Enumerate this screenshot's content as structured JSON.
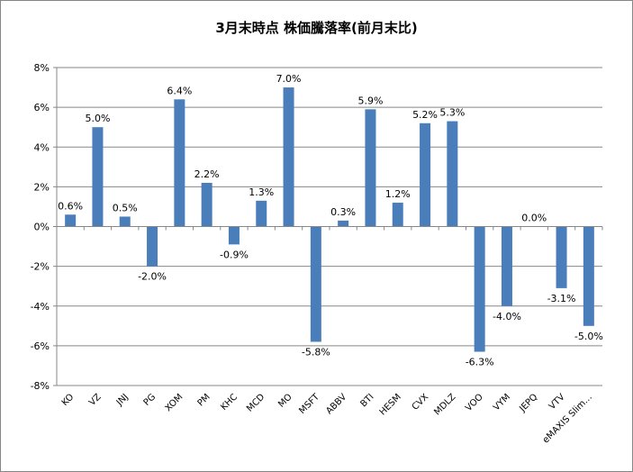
{
  "chart_data": {
    "type": "bar",
    "title": "3月末時点 株価騰落率(前月末比)",
    "xlabel": "",
    "ylabel": "",
    "ylim": [
      -8,
      8
    ],
    "ytick_step": 2,
    "yticks": [
      "-8%",
      "-6%",
      "-4%",
      "-2%",
      "0%",
      "2%",
      "4%",
      "6%",
      "8%"
    ],
    "grid": true,
    "legend": "none",
    "bar_color": "#4a7ebb",
    "categories": [
      "KO",
      "VZ",
      "JNJ",
      "PG",
      "XOM",
      "PM",
      "KHC",
      "MCD",
      "MO",
      "MSFT",
      "ABBV",
      "BTI",
      "HESM",
      "CVX",
      "MDLZ",
      "VOO",
      "VYM",
      "JEPQ",
      "VTV",
      "eMAXIS Slim…"
    ],
    "values": [
      0.6,
      5.0,
      0.5,
      -2.0,
      6.4,
      2.2,
      -0.9,
      1.3,
      7.0,
      -5.8,
      0.3,
      5.9,
      1.2,
      5.2,
      5.3,
      -6.3,
      -4.0,
      0.0,
      -3.1,
      -5.0
    ],
    "data_labels": [
      "0.6%",
      "5.0%",
      "0.5%",
      "-2.0%",
      "6.4%",
      "2.2%",
      "-0.9%",
      "1.3%",
      "7.0%",
      "-5.8%",
      "0.3%",
      "5.9%",
      "1.2%",
      "5.2%",
      "5.3%",
      "-6.3%",
      "-4.0%",
      "0.0%",
      "-3.1%",
      "-5.0%"
    ]
  }
}
